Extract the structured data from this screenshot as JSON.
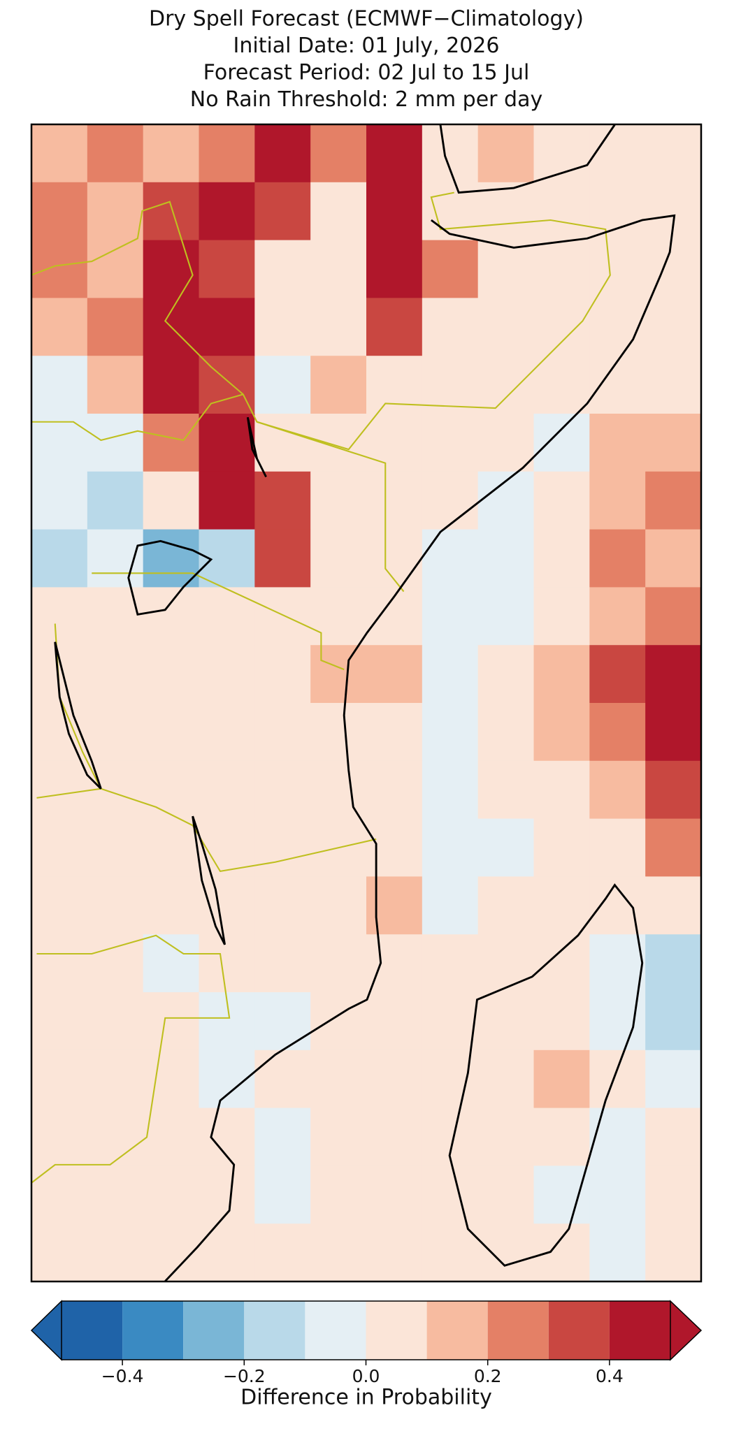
{
  "chart_data": {
    "type": "gridmap",
    "title": [
      "Dry Spell Forecast (ECMWF−Climatology)",
      "Initial Date: 01 July, 2026",
      "Forecast Period: 02 Jul to 15 Jul",
      "No Rain Threshold: 2 mm per day"
    ],
    "colorbar_label": "Difference in Probability",
    "levels": [
      -0.5,
      -0.4,
      -0.3,
      -0.2,
      -0.1,
      0,
      0.1,
      0.2,
      0.3,
      0.4,
      0.5
    ],
    "colors": [
      "#1f63a8",
      "#3a8ac2",
      "#7ab6d6",
      "#b9d9e9",
      "#e5eff4",
      "#fbe5d8",
      "#f7bba0",
      "#e48066",
      "#c94741",
      "#b0172b"
    ],
    "cticks": [
      {
        "value": -0.4,
        "label": "−0.4"
      },
      {
        "value": -0.2,
        "label": "−0.2"
      },
      {
        "value": 0,
        "label": "0.0"
      },
      0.2,
      0.4
    ],
    "values": [
      [
        0.15,
        0.25,
        0.15,
        0.25,
        0.45,
        0.25,
        0.45,
        0.05,
        0.15,
        0.05,
        0.05,
        0.05
      ],
      [
        0.25,
        0.15,
        0.35,
        0.45,
        0.35,
        0.05,
        0.45,
        0.05,
        0.05,
        0.05,
        0.05,
        0.05
      ],
      [
        0.25,
        0.15,
        0.45,
        0.35,
        0.05,
        0.05,
        0.45,
        0.25,
        0.05,
        0.05,
        0.05,
        0.05
      ],
      [
        0.15,
        0.25,
        0.45,
        0.45,
        0.05,
        0.05,
        0.35,
        0.05,
        0.05,
        0.05,
        0.05,
        0.05
      ],
      [
        -0.05,
        0.15,
        0.45,
        0.35,
        -0.05,
        0.15,
        0.05,
        0.05,
        0.05,
        0.05,
        0.05,
        0.05
      ],
      [
        -0.05,
        -0.05,
        0.25,
        0.45,
        0.05,
        0.05,
        0.05,
        0.05,
        0.05,
        -0.05,
        0.15,
        0.15
      ],
      [
        -0.05,
        -0.15,
        0.05,
        0.45,
        0.35,
        0.05,
        0.05,
        0.05,
        -0.05,
        0.05,
        0.15,
        0.25
      ],
      [
        -0.15,
        -0.05,
        -0.25,
        -0.15,
        0.35,
        0.05,
        0.05,
        -0.05,
        -0.05,
        0.05,
        0.25,
        0.15
      ],
      [
        0.05,
        0.05,
        0.05,
        0.05,
        0.05,
        0.05,
        0.05,
        -0.05,
        -0.05,
        0.05,
        0.15,
        0.25
      ],
      [
        0.05,
        0.05,
        0.05,
        0.05,
        0.05,
        0.15,
        0.15,
        -0.05,
        0.05,
        0.15,
        0.35,
        0.45
      ],
      [
        0.05,
        0.05,
        0.05,
        0.05,
        0.05,
        0.05,
        0.05,
        -0.05,
        0.05,
        0.15,
        0.25,
        0.45
      ],
      [
        0.05,
        0.05,
        0.05,
        0.05,
        0.05,
        0.05,
        0.05,
        -0.05,
        0.05,
        0.05,
        0.15,
        0.35
      ],
      [
        0.05,
        0.05,
        0.05,
        0.05,
        0.05,
        0.05,
        0.05,
        -0.05,
        -0.05,
        0.05,
        0.05,
        0.25
      ],
      [
        0.05,
        0.05,
        0.05,
        0.05,
        0.05,
        0.05,
        0.15,
        -0.05,
        0.05,
        0.05,
        0.05,
        0.05
      ],
      [
        0.05,
        0.05,
        -0.05,
        0.05,
        0.05,
        0.05,
        0.05,
        0.05,
        0.05,
        0.05,
        -0.05,
        -0.15
      ],
      [
        0.05,
        0.05,
        0.05,
        -0.05,
        -0.05,
        0.05,
        0.05,
        0.05,
        0.05,
        0.05,
        -0.05,
        -0.15
      ],
      [
        0.05,
        0.05,
        0.05,
        -0.05,
        0.05,
        0.05,
        0.05,
        0.05,
        0.05,
        0.15,
        0.05,
        -0.05
      ],
      [
        0.05,
        0.05,
        0.05,
        0.05,
        -0.05,
        0.05,
        0.05,
        0.05,
        0.05,
        0.05,
        -0.05,
        0.05
      ],
      [
        0.05,
        0.05,
        0.05,
        0.05,
        -0.05,
        0.05,
        0.05,
        0.05,
        0.05,
        -0.05,
        -0.05,
        0.05
      ],
      [
        0.05,
        0.05,
        0.05,
        0.05,
        0.05,
        0.05,
        0.05,
        0.05,
        0.05,
        0.05,
        -0.05,
        0.05
      ]
    ]
  }
}
